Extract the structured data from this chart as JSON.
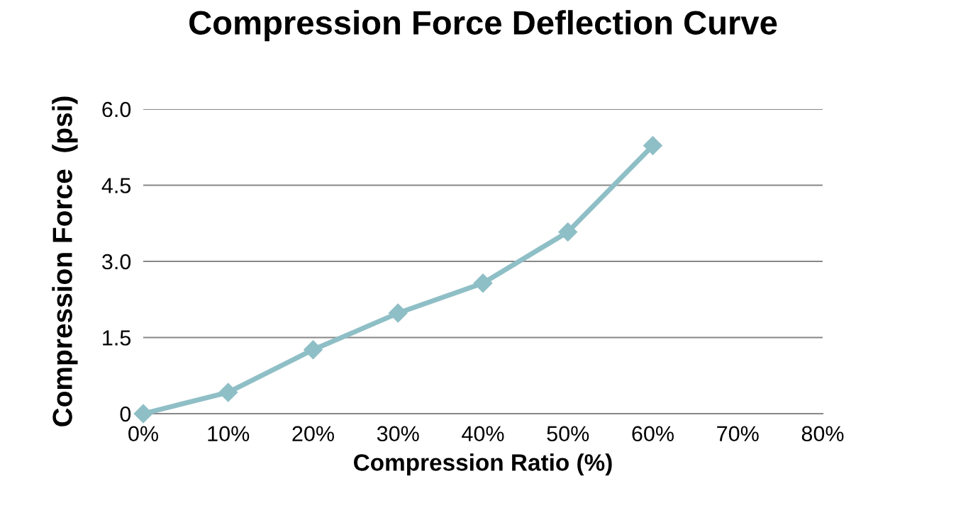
{
  "chart_data": {
    "type": "line",
    "title": "Compression Force Deflection Curve",
    "xlabel": "Compression Ratio (%)",
    "ylabel": "Compression Force  (psi)",
    "x": [
      0,
      10,
      20,
      30,
      40,
      50,
      60
    ],
    "series": [
      {
        "color": "#8fbfc6",
        "values": [
          0,
          0.42,
          1.26,
          1.98,
          2.57,
          3.58,
          5.28
        ]
      }
    ],
    "xlim": [
      0,
      80
    ],
    "xticks": [
      {
        "value": 0,
        "label": "0%"
      },
      {
        "value": 10,
        "label": "10%"
      },
      {
        "value": 20,
        "label": "20%"
      },
      {
        "value": 30,
        "label": "30%"
      },
      {
        "value": 40,
        "label": "40%"
      },
      {
        "value": 50,
        "label": "50%"
      },
      {
        "value": 60,
        "label": "60%"
      },
      {
        "value": 70,
        "label": "70%"
      },
      {
        "value": 80,
        "label": "80%"
      }
    ],
    "ylim": [
      0,
      6
    ],
    "yticks": [
      0,
      {
        "value": 1.5,
        "label": "1.5"
      },
      {
        "value": 3,
        "label": "3.0"
      },
      {
        "value": 4.5,
        "label": "4.5"
      },
      {
        "value": 6,
        "label": "6.0"
      }
    ],
    "grid": "y",
    "marker": "diamond",
    "line_style": "solid"
  }
}
